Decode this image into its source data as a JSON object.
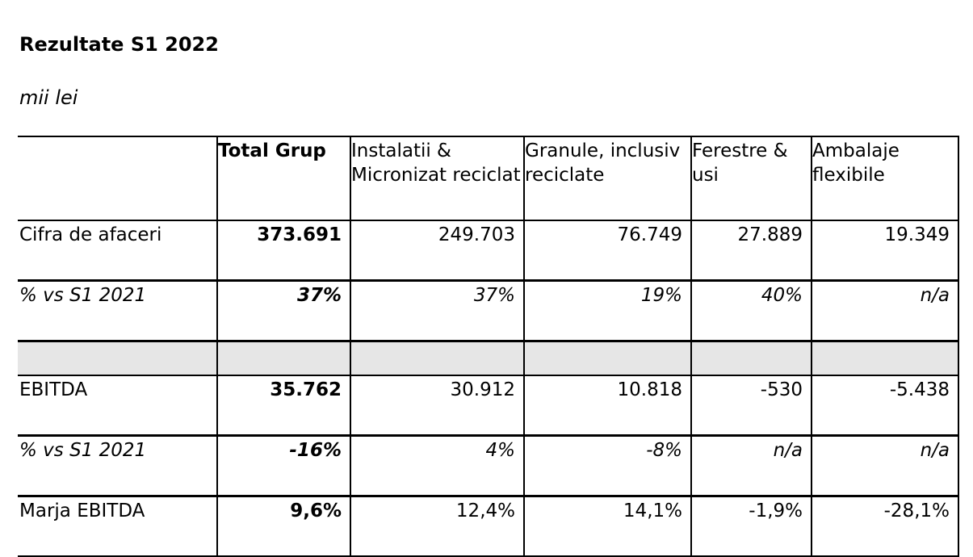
{
  "title": "Rezultate S1 2022",
  "units": "mii lei",
  "table": {
    "headers": [
      "",
      "Total Grup",
      "Instalatii & Micronizat reciclat",
      "Granule, inclusiv reciclate",
      "Ferestre & usi",
      "Ambalaje flexibile"
    ],
    "rows": [
      {
        "label": "Cifra de afaceri",
        "values": [
          "373.691",
          "249.703",
          "76.749",
          "27.889",
          "19.349"
        ]
      },
      {
        "label": "% vs S1 2021",
        "values": [
          "37%",
          "37%",
          "19%",
          "40%",
          "n/a"
        ]
      },
      {
        "label": "",
        "values": [
          "",
          "",
          "",
          "",
          ""
        ]
      },
      {
        "label": "EBITDA",
        "values": [
          "35.762",
          "30.912",
          "10.818",
          "-530",
          "-5.438"
        ]
      },
      {
        "label": "% vs S1 2021",
        "values": [
          "-16%",
          "4%",
          "-8%",
          "n/a",
          "n/a"
        ]
      },
      {
        "label": "Marja EBITDA",
        "values": [
          "9,6%",
          "12,4%",
          "14,1%",
          "-1,9%",
          "-28,1%"
        ]
      }
    ]
  }
}
